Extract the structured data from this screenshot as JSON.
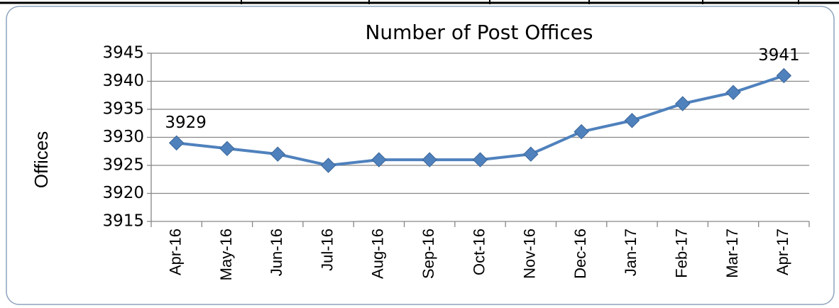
{
  "chart_data": {
    "type": "line",
    "title": "Number of Post Offices",
    "y_label": "Offices",
    "categories": [
      "Apr-16",
      "May-16",
      "Jun-16",
      "Jul-16",
      "Aug-16",
      "Sep-16",
      "Oct-16",
      "Nov-16",
      "Dec-16",
      "Jan-17",
      "Feb-17",
      "Mar-17",
      "Apr-17"
    ],
    "series": [
      {
        "name": "Offices",
        "color": "#4f81bd",
        "values": [
          3929,
          3928,
          3927,
          3925,
          3926,
          3926,
          3926,
          3927,
          3931,
          3933,
          3936,
          3938,
          3941
        ],
        "value_labels": [
          "3929",
          null,
          null,
          null,
          null,
          null,
          null,
          null,
          null,
          null,
          null,
          null,
          "3941"
        ]
      }
    ],
    "ylim": [
      3915,
      3945
    ],
    "yticks": [
      3915,
      3920,
      3925,
      3930,
      3935,
      3940,
      3945
    ],
    "grid": true
  }
}
